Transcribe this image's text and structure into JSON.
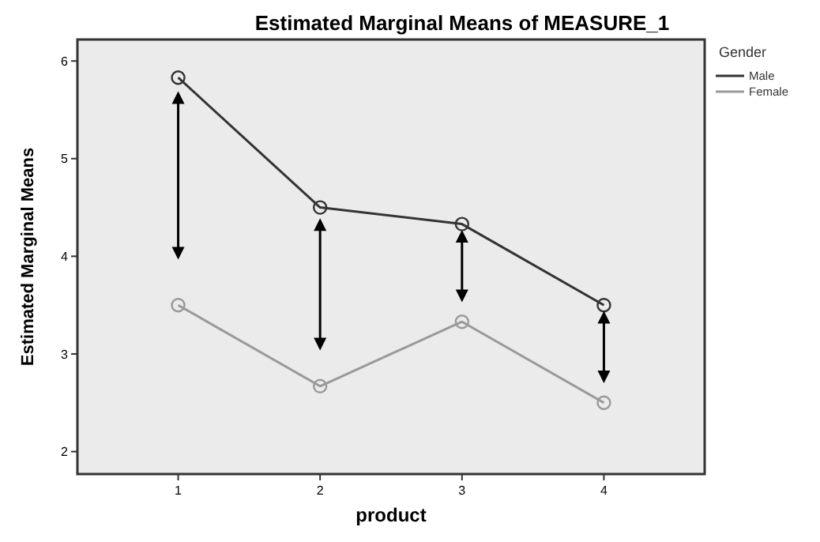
{
  "chart_data": {
    "type": "line",
    "title": "Estimated Marginal Means of MEASURE_1",
    "xlabel": "product",
    "ylabel": "Estimated Marginal Means",
    "legend_title": "Gender",
    "x": [
      1,
      2,
      3,
      4
    ],
    "xlim": [
      0.29,
      4.71
    ],
    "xticks": [
      1,
      2,
      3,
      4
    ],
    "ylim": [
      1.77,
      6.22
    ],
    "yticks": [
      2,
      3,
      4,
      5,
      6
    ],
    "legend": "top right",
    "marker": "circle",
    "line_style": "solid",
    "grid": false,
    "series": [
      {
        "name": "Male",
        "color": "#333333",
        "values": [
          5.83,
          4.5,
          4.33,
          3.5
        ]
      },
      {
        "name": "Female",
        "color": "#999999",
        "values": [
          3.5,
          2.67,
          3.33,
          2.5
        ]
      }
    ]
  }
}
